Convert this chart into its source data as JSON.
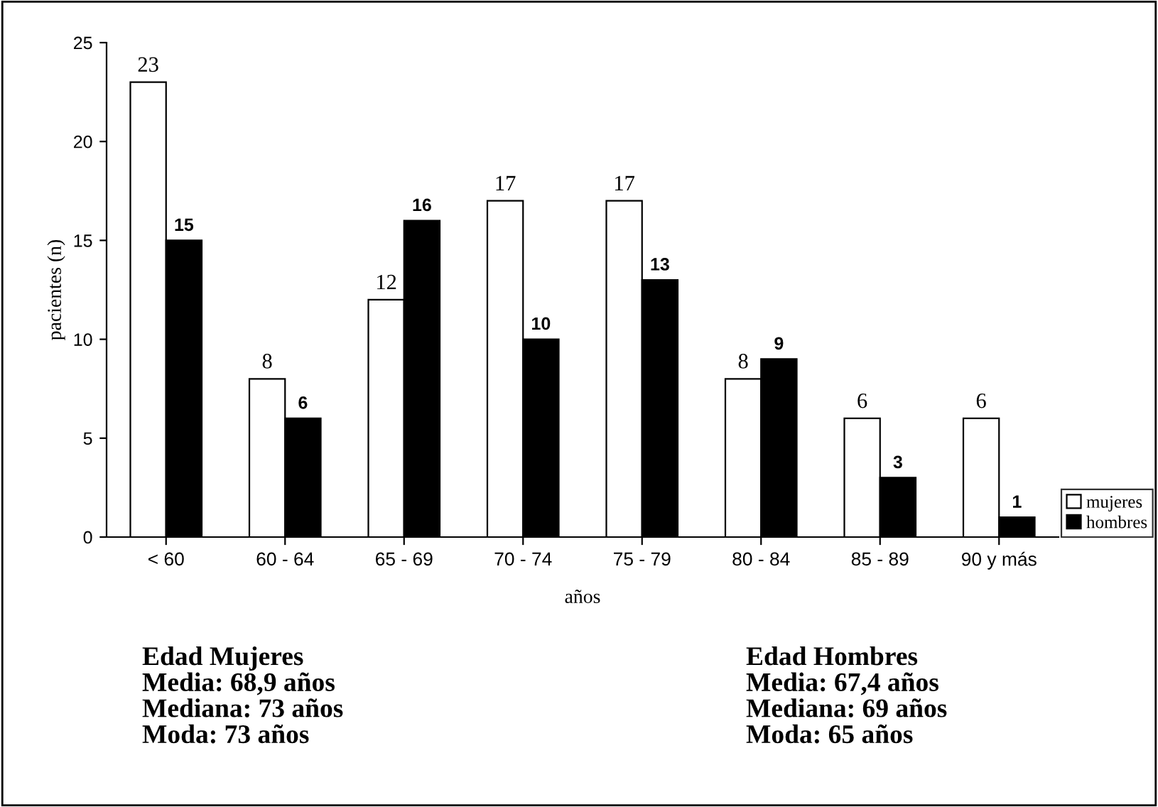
{
  "chart_data": {
    "type": "bar",
    "xlabel": "años",
    "ylabel": "pacientes (n)",
    "categories": [
      "< 60",
      "60 - 64",
      "65 - 69",
      "70 - 74",
      "75 - 79",
      "80 - 84",
      "85 - 89",
      "90 y más"
    ],
    "series": [
      {
        "name": "mujeres",
        "color": "#ffffff",
        "values": [
          23,
          8,
          12,
          17,
          17,
          8,
          6,
          6
        ]
      },
      {
        "name": "hombres",
        "color": "#000000",
        "values": [
          15,
          6,
          16,
          10,
          13,
          9,
          3,
          1
        ]
      }
    ],
    "ylim": [
      0,
      25
    ],
    "yticks": [
      0,
      5,
      10,
      15,
      20,
      25
    ],
    "grid": false,
    "legend": "right",
    "data_labels": true,
    "annotations": [
      "Edad Mujeres\nMedia: 68,9 años\nMediana: 73 años\nModa: 73 años",
      "Edad Hombres\nMedia: 67,4 años\nMediana: 69 años\nModa: 65 años"
    ]
  }
}
